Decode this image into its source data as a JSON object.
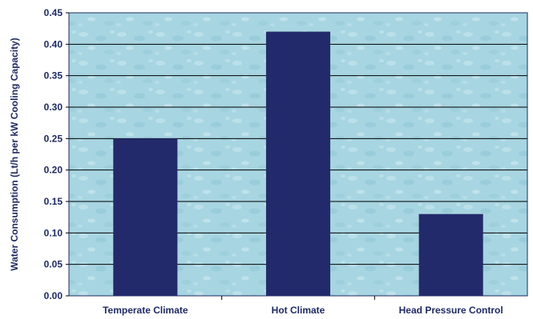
{
  "chart_data": {
    "type": "bar",
    "categories": [
      "Temperate Climate",
      "Hot Climate",
      "Head Pressure Control"
    ],
    "values": [
      0.25,
      0.42,
      0.13
    ],
    "title": "",
    "xlabel": "",
    "ylabel": "Water Consumption (Lt/h per kW Cooling Capacity)",
    "ylim": [
      0,
      0.45
    ],
    "yticks": [
      "0.00",
      "0.05",
      "0.10",
      "0.15",
      "0.20",
      "0.25",
      "0.30",
      "0.35",
      "0.40",
      "0.45"
    ],
    "grid": true,
    "legend": "none",
    "colors": {
      "bar": "#232a6b",
      "plot_background": "#a9d6e2",
      "grid": "#000000",
      "text": "#1f2a63"
    }
  }
}
